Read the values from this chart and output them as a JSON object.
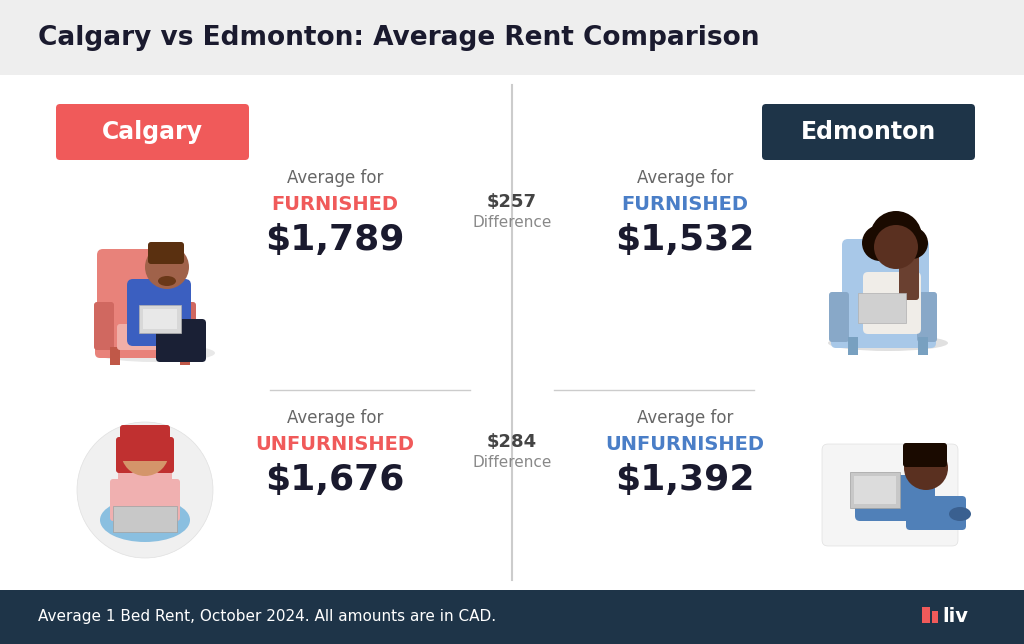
{
  "title": "Calgary vs Edmonton: Average Rent Comparison",
  "title_fontsize": 19,
  "calgary_label": "Calgary",
  "edmonton_label": "Edmonton",
  "calgary_box_color": "#F05A5A",
  "edmonton_box_color": "#1E3448",
  "city_label_fontsize": 17,
  "city_label_color": "#ffffff",
  "avg_for_text": "Average for",
  "avg_for_fontsize": 12,
  "avg_for_color": "#666666",
  "calgary_furnished_label": "FURNISHED",
  "calgary_furnished_color": "#F05A5A",
  "calgary_furnished_value": "$1,789",
  "calgary_furnished_value_color": "#1a1a2e",
  "calgary_unfurnished_label": "UNFURNISHED",
  "calgary_unfurnished_color": "#F05A5A",
  "calgary_unfurnished_value": "$1,676",
  "calgary_unfurnished_value_color": "#1a1a2e",
  "edmonton_furnished_label": "FURNISHED",
  "edmonton_furnished_color": "#4A7EC7",
  "edmonton_furnished_value": "$1,532",
  "edmonton_furnished_value_color": "#1a1a2e",
  "edmonton_unfurnished_label": "UNFURNISHED",
  "edmonton_unfurnished_color": "#4A7EC7",
  "edmonton_unfurnished_value": "$1,392",
  "edmonton_unfurnished_value_color": "#1a1a2e",
  "furnished_diff": "$257",
  "unfurnished_diff": "$284",
  "diff_label": "Difference",
  "diff_fontsize": 11,
  "diff_color": "#888888",
  "diff_value_fontsize": 13,
  "diff_value_color": "#444444",
  "label_fontsize": 14,
  "value_fontsize": 26,
  "footer_text": "Average 1 Bed Rent, October 2024. All amounts are in CAD.",
  "footer_bg": "#1E3448",
  "footer_text_color": "#ffffff",
  "footer_fontsize": 11,
  "main_bg": "#f5f5f5",
  "content_bg": "#ffffff",
  "divider_color": "#cccccc",
  "header_bg": "#eeeeee"
}
